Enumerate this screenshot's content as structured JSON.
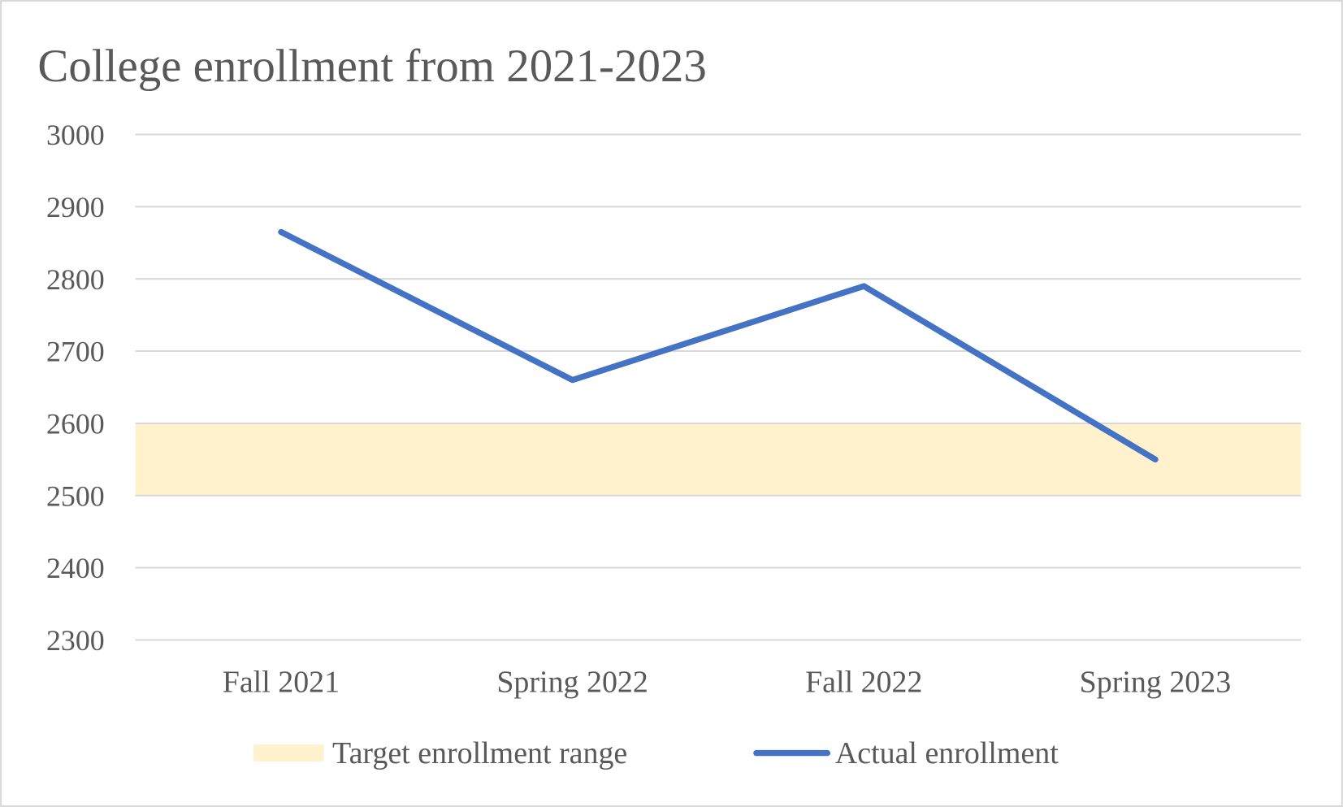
{
  "chart_data": {
    "type": "line",
    "title": "College enrollment from 2021-2023",
    "xlabel": "",
    "ylabel": "",
    "categories": [
      "Fall 2021",
      "Spring 2022",
      "Fall 2022",
      "Spring 2023"
    ],
    "ylim": [
      2300,
      3000
    ],
    "yticks": [
      2300,
      2400,
      2500,
      2600,
      2700,
      2800,
      2900,
      3000
    ],
    "grid": true,
    "legend_position": "bottom",
    "band": {
      "name": "Target enrollment range",
      "low": 2500,
      "high": 2600,
      "color": "#FFF2CC"
    },
    "series": [
      {
        "name": "Actual enrollment",
        "values": [
          2865,
          2660,
          2790,
          2550
        ],
        "color": "#4472C4"
      }
    ]
  }
}
